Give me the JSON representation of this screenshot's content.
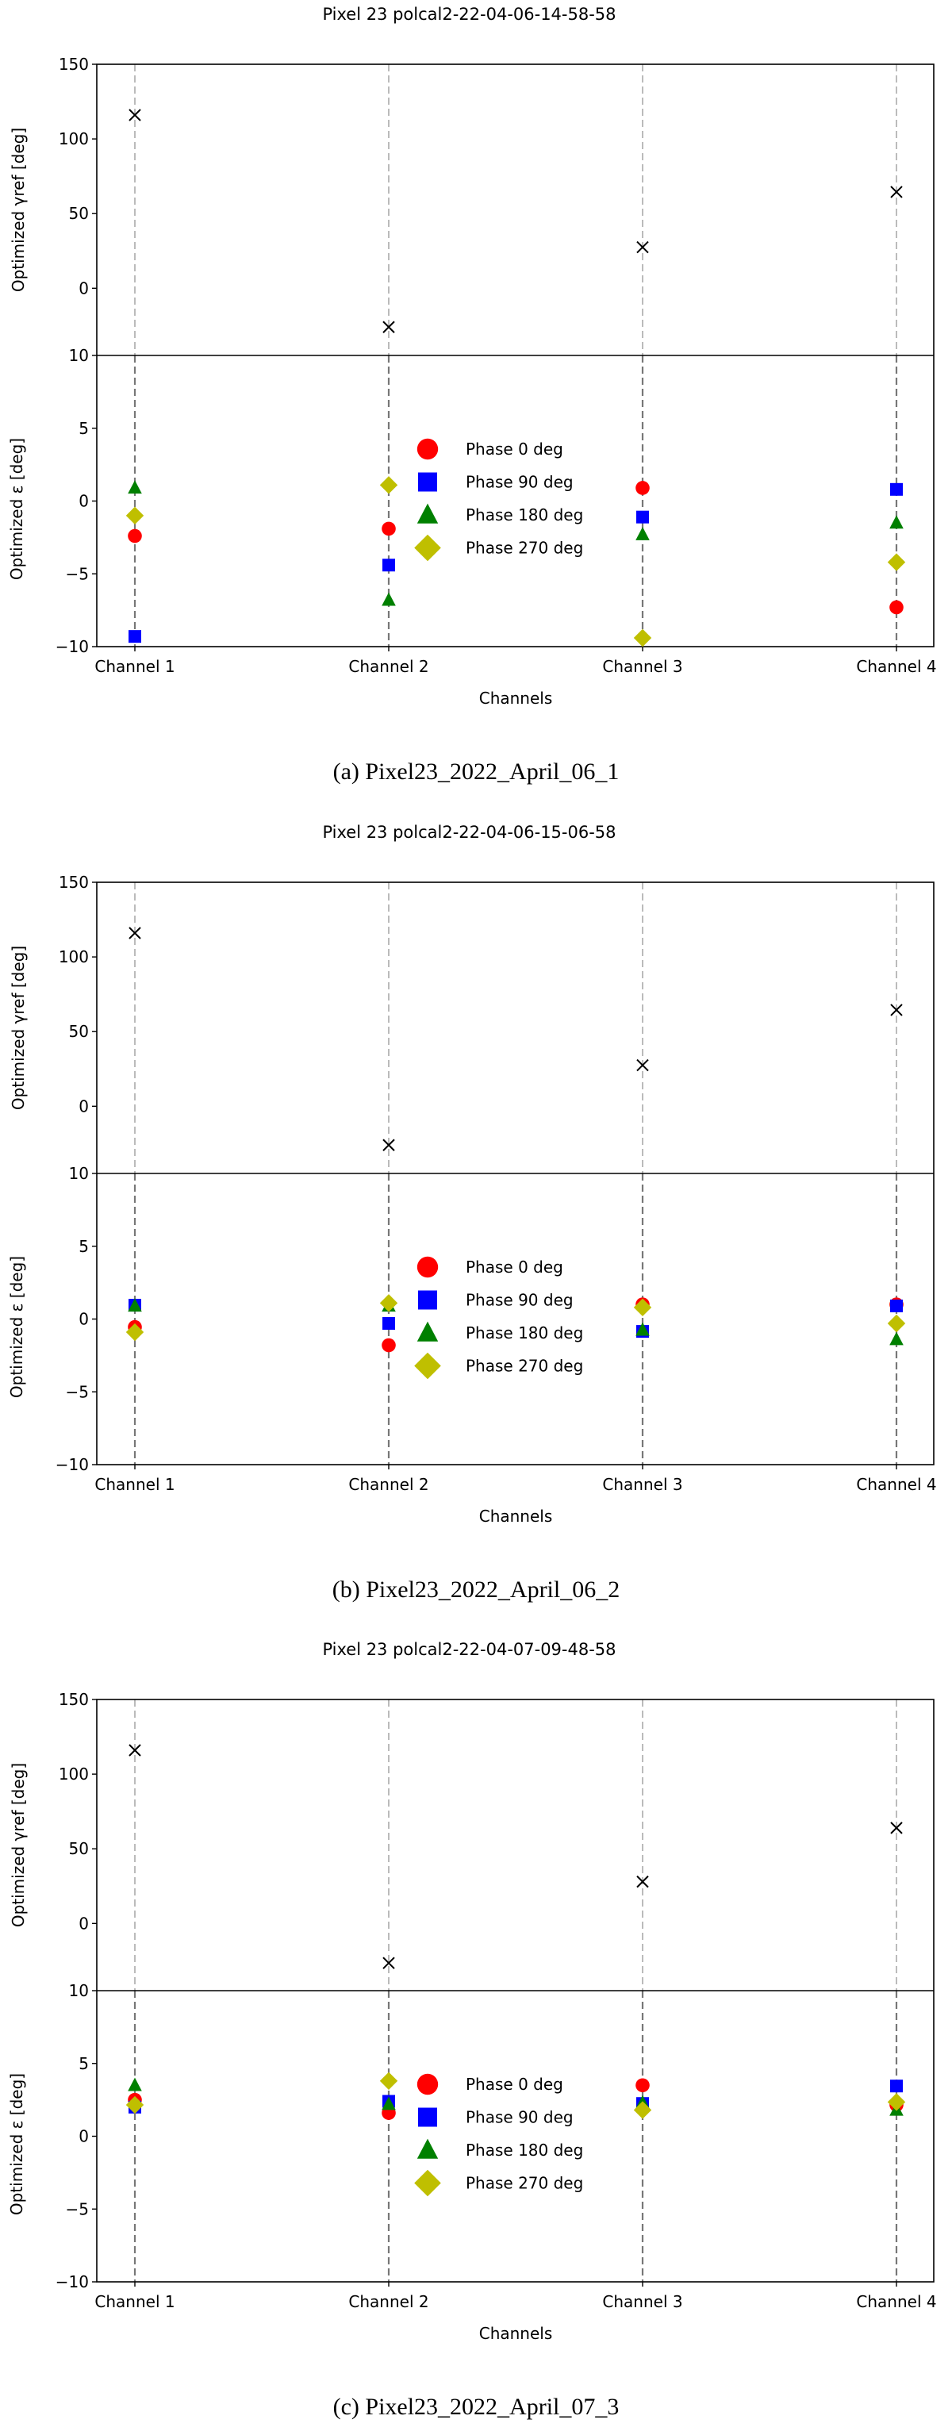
{
  "colors": {
    "phase_0": "#ff0000",
    "phase_90": "#0000ff",
    "phase_180": "#008000",
    "phase_270": "#bfbf00",
    "gamma": "#000000"
  },
  "chart_data": [
    {
      "type": "scatter",
      "title": "Pixel 23 polcal2-22-04-06-14-58-58",
      "caption": "(a) Pixel23_2022_April_06_1",
      "categories": [
        "Channel 1",
        "Channel 2",
        "Channel 3",
        "Channel 4"
      ],
      "xlabel": "Channels",
      "top": {
        "ylabel": "Optimized γref [deg]",
        "ylim": [
          -45,
          150
        ],
        "yticks": [
          150,
          100,
          50,
          0
        ],
        "values": [
          116,
          -26,
          27.5,
          64.5
        ]
      },
      "bottom": {
        "ylabel": "Optimized ε [deg]",
        "ylim": [
          -10,
          10
        ],
        "yticks": [
          10,
          5,
          0,
          -5,
          -10
        ],
        "series": [
          {
            "name": "Phase 0 deg",
            "marker": "circle",
            "values": [
              -2.4,
              -1.9,
              0.9,
              -7.3
            ]
          },
          {
            "name": "Phase 90 deg",
            "marker": "square",
            "values": [
              -9.3,
              -4.4,
              -1.1,
              0.8
            ]
          },
          {
            "name": "Phase 180 deg",
            "marker": "triangle",
            "values": [
              0.9,
              -6.8,
              -2.3,
              -1.5
            ]
          },
          {
            "name": "Phase 270 deg",
            "marker": "diamond",
            "values": [
              -1.0,
              1.1,
              -9.4,
              -4.2
            ]
          }
        ]
      },
      "legend": "center"
    },
    {
      "type": "scatter",
      "title": "Pixel 23 polcal2-22-04-06-15-06-58",
      "caption": "(b) Pixel23_2022_April_06_2",
      "categories": [
        "Channel 1",
        "Channel 2",
        "Channel 3",
        "Channel 4"
      ],
      "xlabel": "Channels",
      "top": {
        "ylabel": "Optimized γref [deg]",
        "ylim": [
          -45,
          150
        ],
        "yticks": [
          150,
          100,
          50,
          0
        ],
        "values": [
          116,
          -26,
          27.5,
          64.5
        ]
      },
      "bottom": {
        "ylabel": "Optimized ε [deg]",
        "ylim": [
          -10,
          10
        ],
        "yticks": [
          10,
          5,
          0,
          -5,
          -10
        ],
        "series": [
          {
            "name": "Phase 0 deg",
            "marker": "circle",
            "values": [
              -0.55,
              -1.8,
              1.0,
              1.0
            ]
          },
          {
            "name": "Phase 90 deg",
            "marker": "square",
            "values": [
              0.95,
              -0.3,
              -0.85,
              0.9
            ]
          },
          {
            "name": "Phase 180 deg",
            "marker": "triangle",
            "values": [
              0.9,
              0.9,
              -0.75,
              -1.4
            ]
          },
          {
            "name": "Phase 270 deg",
            "marker": "diamond",
            "values": [
              -0.9,
              1.1,
              0.8,
              -0.3
            ]
          }
        ]
      },
      "legend": "center"
    },
    {
      "type": "scatter",
      "title": "Pixel 23 polcal2-22-04-07-09-48-58",
      "caption": "(c) Pixel23_2022_April_07_3",
      "categories": [
        "Channel 1",
        "Channel 2",
        "Channel 3",
        "Channel 4"
      ],
      "xlabel": "Channels",
      "top": {
        "ylabel": "Optimized γref [deg]",
        "ylim": [
          -45,
          150
        ],
        "yticks": [
          150,
          100,
          50,
          0
        ],
        "values": [
          116,
          -26.5,
          28,
          64
        ]
      },
      "bottom": {
        "ylabel": "Optimized ε [deg]",
        "ylim": [
          -10,
          10
        ],
        "yticks": [
          10,
          5,
          0,
          -5,
          -10
        ],
        "series": [
          {
            "name": "Phase 0 deg",
            "marker": "circle",
            "values": [
              2.5,
              1.6,
              3.5,
              2.15
            ]
          },
          {
            "name": "Phase 90 deg",
            "marker": "square",
            "values": [
              2.0,
              2.4,
              2.25,
              3.45
            ]
          },
          {
            "name": "Phase 180 deg",
            "marker": "triangle",
            "values": [
              3.5,
              2.2,
              2.3,
              1.8
            ]
          },
          {
            "name": "Phase 270 deg",
            "marker": "diamond",
            "values": [
              2.15,
              3.8,
              1.8,
              2.35
            ]
          }
        ]
      },
      "legend": "center"
    }
  ]
}
